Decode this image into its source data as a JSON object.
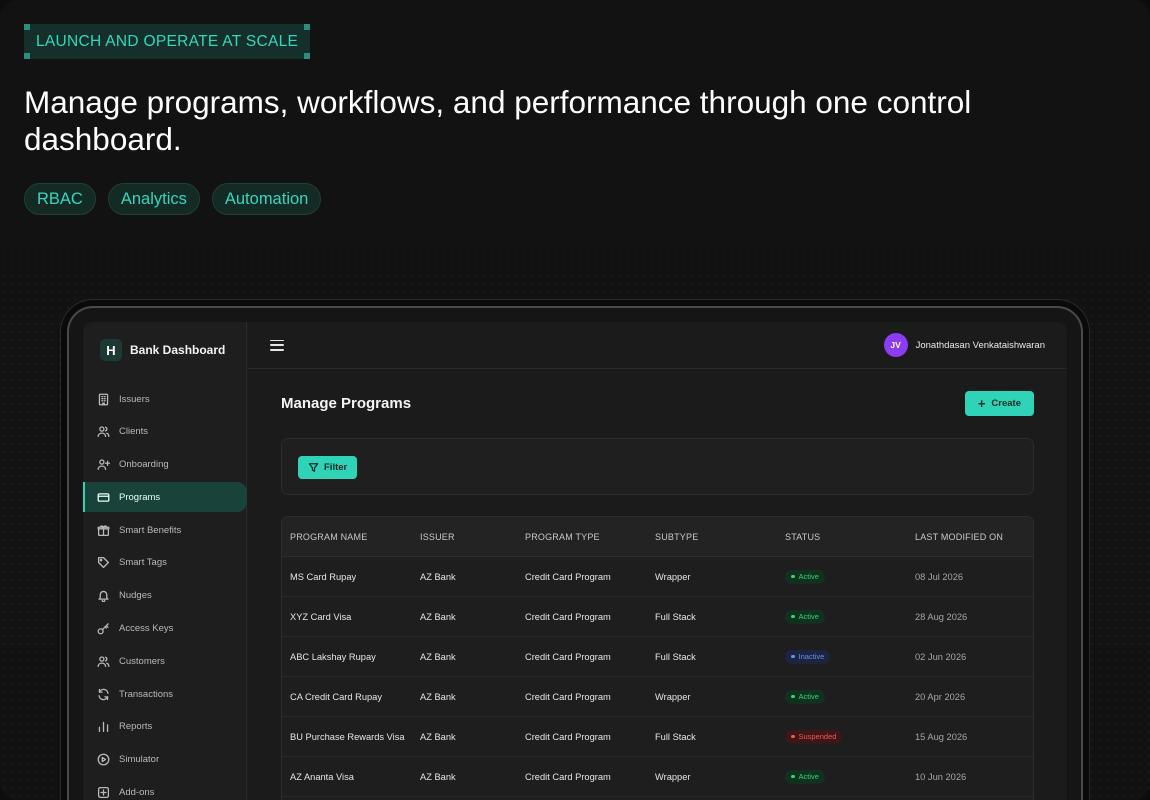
{
  "hero": {
    "eyebrow": "LAUNCH AND OPERATE AT SCALE",
    "headline": "Manage programs, workflows, and performance through one control dashboard.",
    "chips": [
      "RBAC",
      "Analytics",
      "Automation"
    ]
  },
  "app": {
    "brand_logo": "H",
    "brand_name": "Bank Dashboard",
    "user_initials": "JV",
    "user_name": "Jonathdasan Venkataishwaran",
    "page_title": "Manage Programs",
    "create_label": "Create",
    "filter_label": "Filter"
  },
  "sidebar": {
    "items": [
      {
        "label": "Issuers",
        "icon": "building-icon"
      },
      {
        "label": "Clients",
        "icon": "users-icon"
      },
      {
        "label": "Onboarding",
        "icon": "user-plus-icon"
      },
      {
        "label": "Programs",
        "icon": "credit-card-icon",
        "active": true
      },
      {
        "label": "Smart Benefits",
        "icon": "gift-icon"
      },
      {
        "label": "Smart Tags",
        "icon": "tag-icon"
      },
      {
        "label": "Nudges",
        "icon": "bell-icon"
      },
      {
        "label": "Access Keys",
        "icon": "key-icon"
      },
      {
        "label": "Customers",
        "icon": "users-icon"
      },
      {
        "label": "Transactions",
        "icon": "refresh-icon"
      },
      {
        "label": "Reports",
        "icon": "bar-chart-icon"
      },
      {
        "label": "Simulator",
        "icon": "play-circle-icon"
      },
      {
        "label": "Add-ons",
        "icon": "plus-square-icon"
      }
    ]
  },
  "table": {
    "headers": [
      "PROGRAM NAME",
      "ISSUER",
      "PROGRAM TYPE",
      "SUBTYPE",
      "STATUS",
      "LAST MODIFIED ON"
    ],
    "rows": [
      {
        "name": "MS Card Rupay",
        "issuer": "AZ Bank",
        "type": "Credit Card Program",
        "subtype": "Wrapper",
        "status": "Active",
        "modified": "08 Jul 2026"
      },
      {
        "name": "XYZ Card Visa",
        "issuer": "AZ Bank",
        "type": "Credit Card Program",
        "subtype": "Full Stack",
        "status": "Active",
        "modified": "28 Aug 2026"
      },
      {
        "name": "ABC Lakshay Rupay",
        "issuer": "AZ Bank",
        "type": "Credit Card Program",
        "subtype": "Full Stack",
        "status": "Inactive",
        "modified": "02 Jun 2026"
      },
      {
        "name": "CA Credit Card Rupay",
        "issuer": "AZ Bank",
        "type": "Credit Card Program",
        "subtype": "Wrapper",
        "status": "Active",
        "modified": "20 Apr 2026"
      },
      {
        "name": "BU Purchase Rewards Visa",
        "issuer": "AZ Bank",
        "type": "Credit Card Program",
        "subtype": "Full Stack",
        "status": "Suspended",
        "modified": "15 Aug 2026"
      },
      {
        "name": "AZ Ananta Visa",
        "issuer": "AZ Bank",
        "type": "Credit Card Program",
        "subtype": "Wrapper",
        "status": "Active",
        "modified": "10 Jun 2026"
      }
    ]
  },
  "colors": {
    "accent": "#2fd3b8",
    "active": "#39d66e",
    "inactive": "#6d8fe6",
    "suspended": "#f05a5a",
    "avatar": "#8a3df5"
  }
}
